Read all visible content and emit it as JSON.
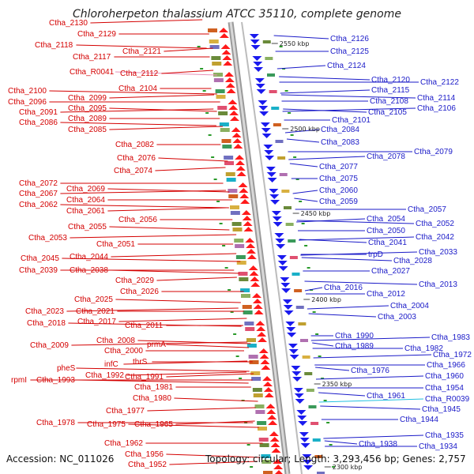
{
  "title": "Chloroherpeton thalassium ATCC 35110, complete genome",
  "accession_text": "Accession: NC_011026",
  "summary_text": "Topology: circular; Length: 3,293,456 bp; Genes: 2,757",
  "colors": {
    "left_label": "#d40000",
    "right_label": "#1a1ac8",
    "left_arrow": "#ff1a1a",
    "right_arrow": "#1a1aee",
    "tick": "#2a9a2a",
    "pink_label": "#e890b8",
    "cyan_label": "#20c0e0"
  },
  "scale_marks": [
    "2550 kbp",
    "2500 kbp",
    "2450 kbp",
    "2400 kbp",
    "2350 kbp",
    "2300 kbp"
  ],
  "left_labels": [
    {
      "text": "Ctha_2130"
    },
    {
      "text": "Ctha_2129"
    },
    {
      "text": "Ctha_2118"
    },
    {
      "text": "Ctha_2121"
    },
    {
      "text": "Ctha_2117"
    },
    {
      "text": "Ctha_R0041",
      "color": "pink"
    },
    {
      "text": "Ctha_2112"
    },
    {
      "text": "Ctha_2104"
    },
    {
      "text": "Ctha_2100"
    },
    {
      "text": "Ctha_2099"
    },
    {
      "text": "Ctha_2096"
    },
    {
      "text": "Ctha_2095"
    },
    {
      "text": "Ctha_2091"
    },
    {
      "text": "Ctha_2089"
    },
    {
      "text": "Ctha_2086"
    },
    {
      "text": "Ctha_2085"
    },
    {
      "text": "Ctha_2082"
    },
    {
      "text": "Ctha_2076"
    },
    {
      "text": "Ctha_2074"
    },
    {
      "text": "Ctha_2072"
    },
    {
      "text": "Ctha_2069"
    },
    {
      "text": "Ctha_2067"
    },
    {
      "text": "Ctha_2064"
    },
    {
      "text": "Ctha_2062"
    },
    {
      "text": "Ctha_2061"
    },
    {
      "text": "Ctha_2056"
    },
    {
      "text": "Ctha_2055"
    },
    {
      "text": "Ctha_2053"
    },
    {
      "text": "Ctha_2051"
    },
    {
      "text": "Ctha_2045"
    },
    {
      "text": "Ctha_2044"
    },
    {
      "text": "Ctha_2039"
    },
    {
      "text": "Ctha_2038"
    },
    {
      "text": "Ctha_2029"
    },
    {
      "text": "Ctha_2026"
    },
    {
      "text": "Ctha_2025"
    },
    {
      "text": "Ctha_2023"
    },
    {
      "text": "Ctha_2021"
    },
    {
      "text": "Ctha_2018"
    },
    {
      "text": "Ctha_2017"
    },
    {
      "text": "Ctha_2011"
    },
    {
      "text": "Ctha_2008"
    },
    {
      "text": "Ctha_2009"
    },
    {
      "text": "Ctha_2000"
    },
    {
      "text": "prmA"
    },
    {
      "text": "infC"
    },
    {
      "text": "thrS"
    },
    {
      "text": "pheS"
    },
    {
      "text": "Ctha_1992"
    },
    {
      "text": "rpmI"
    },
    {
      "text": "Ctha_1993"
    },
    {
      "text": "Ctha_1991"
    },
    {
      "text": "Ctha_1981"
    },
    {
      "text": "Ctha_1980"
    },
    {
      "text": "Ctha_1977"
    },
    {
      "text": "Ctha_1978"
    },
    {
      "text": "Ctha_1975"
    },
    {
      "text": "Ctha_1965"
    },
    {
      "text": "Ctha_1962"
    },
    {
      "text": "Ctha_1956"
    },
    {
      "text": "Ctha_1952"
    }
  ],
  "right_labels": [
    {
      "text": "Ctha_2126"
    },
    {
      "text": "Ctha_2125"
    },
    {
      "text": "Ctha_2124"
    },
    {
      "text": "Ctha_2120"
    },
    {
      "text": "Ctha_2122"
    },
    {
      "text": "Ctha_2115"
    },
    {
      "text": "Ctha_2114"
    },
    {
      "text": "Ctha_2108"
    },
    {
      "text": "Ctha_2106"
    },
    {
      "text": "Ctha_2105"
    },
    {
      "text": "Ctha_2101"
    },
    {
      "text": "Ctha_2084"
    },
    {
      "text": "Ctha_2083"
    },
    {
      "text": "Ctha_2079"
    },
    {
      "text": "Ctha_2078"
    },
    {
      "text": "Ctha_2077"
    },
    {
      "text": "Ctha_2075"
    },
    {
      "text": "Ctha_2060"
    },
    {
      "text": "Ctha_2059"
    },
    {
      "text": "Ctha_2057"
    },
    {
      "text": "Ctha_2054"
    },
    {
      "text": "Ctha_2052"
    },
    {
      "text": "Ctha_2050"
    },
    {
      "text": "Ctha_2042"
    },
    {
      "text": "Ctha_2041"
    },
    {
      "text": "trpD"
    },
    {
      "text": "Ctha_2033"
    },
    {
      "text": "Ctha_2028"
    },
    {
      "text": "Ctha_2027"
    },
    {
      "text": "Ctha_2016"
    },
    {
      "text": "Ctha_2013"
    },
    {
      "text": "Ctha_2012"
    },
    {
      "text": "Ctha_2004"
    },
    {
      "text": "Ctha_2003"
    },
    {
      "text": "Ctha_1990"
    },
    {
      "text": "Ctha_1983"
    },
    {
      "text": "Ctha_1989"
    },
    {
      "text": "Ctha_1982"
    },
    {
      "text": "Ctha_1972"
    },
    {
      "text": "Ctha_1976"
    },
    {
      "text": "Ctha_1966"
    },
    {
      "text": "Ctha_1960"
    },
    {
      "text": "Ctha_1961"
    },
    {
      "text": "Ctha_1954"
    },
    {
      "text": "Ctha_R0039",
      "color": "cyan"
    },
    {
      "text": "Ctha_1945"
    },
    {
      "text": "Ctha_1944"
    },
    {
      "text": "Ctha_1935"
    },
    {
      "text": "Ctha_1938"
    },
    {
      "text": "Ctha_1934"
    }
  ]
}
